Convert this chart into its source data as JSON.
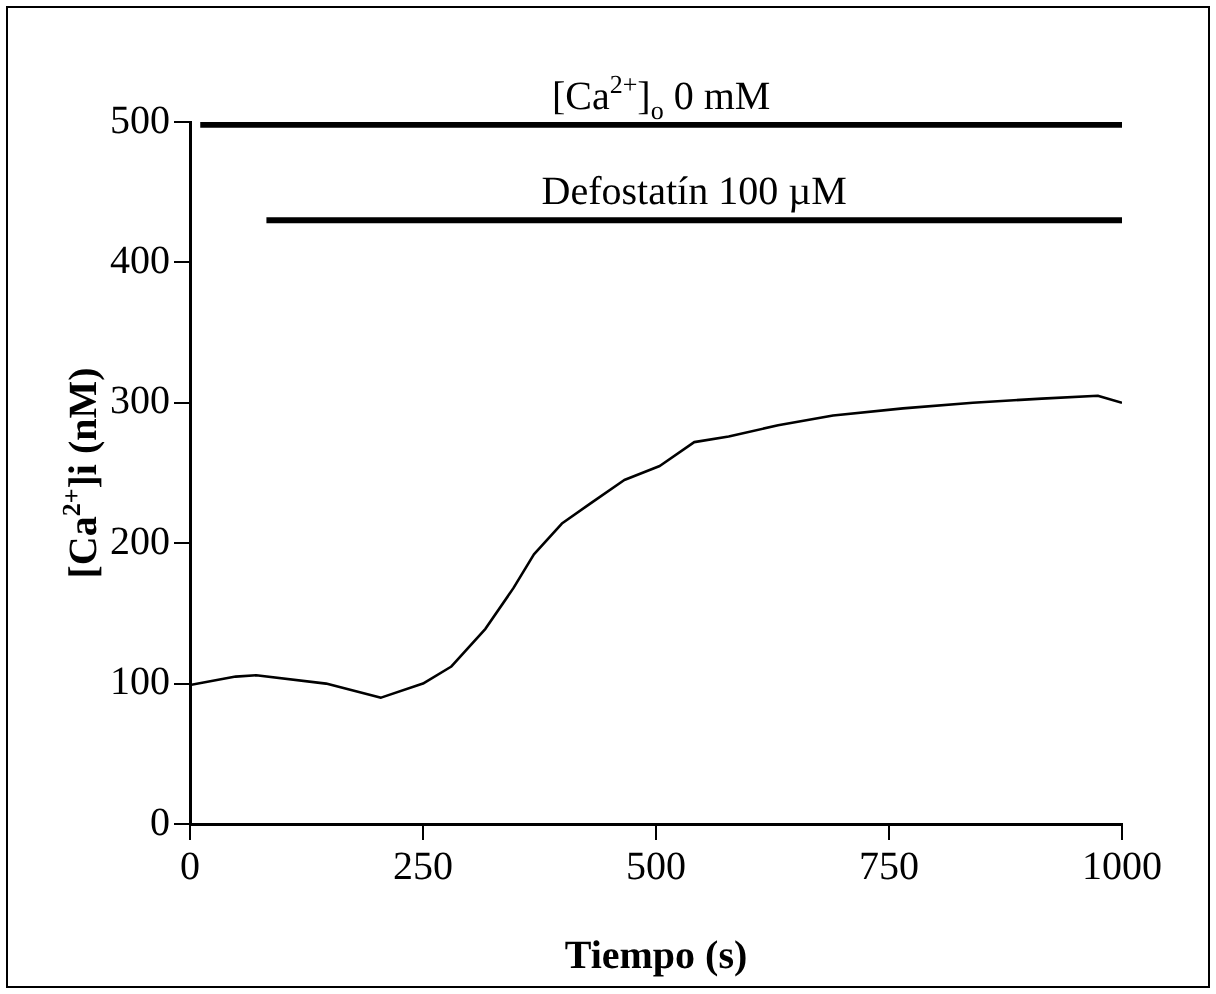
{
  "chart_data": {
    "type": "line",
    "xlabel": "Tiempo (s)",
    "ylabel": "[Ca$^{2+}$]i (nM)",
    "series": [
      {
        "color": "#000000",
        "x": [
          0,
          49,
          71,
          146,
          205,
          250,
          280,
          317,
          347,
          369,
          399,
          429,
          466,
          504,
          541,
          578,
          631,
          690,
          765,
          840,
          914,
          974,
          1000
        ],
        "values": [
          99,
          105,
          106,
          100,
          90,
          100,
          112,
          139,
          168,
          192,
          214,
          228,
          245,
          255,
          272,
          276,
          284,
          291,
          296,
          300,
          303,
          305,
          300
        ]
      },
      {
        "name": "[Ca$^{2+}$]$_{o}$ 0 mM",
        "color": "#000000",
        "x": [
          11,
          1000
        ],
        "values": [
          498,
          498
        ]
      },
      {
        "name": "Defostatín 100 µM",
        "color": "#000000",
        "x": [
          82,
          1000
        ],
        "values": [
          430,
          430
        ]
      }
    ],
    "xlim": [
      0,
      1000
    ],
    "xticks": [
      0,
      250,
      500,
      750,
      1000
    ],
    "ylim": [
      0,
      500
    ],
    "yticks": [
      0,
      100,
      200,
      300,
      400,
      500
    ],
    "grid": false,
    "legend": false,
    "marker": "none",
    "line_style": "solid"
  }
}
